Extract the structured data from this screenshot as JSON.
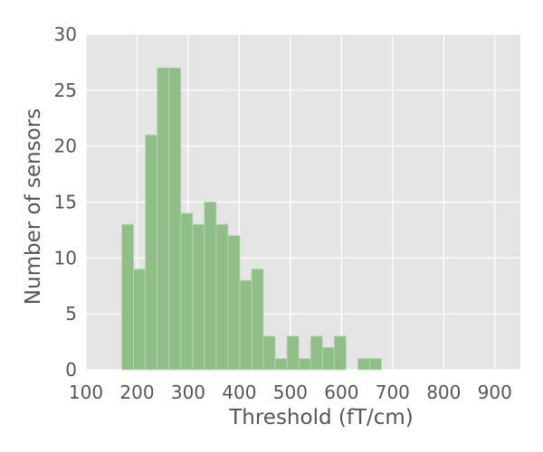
{
  "chart_data": {
    "type": "bar",
    "title": "",
    "xlabel": "Threshold (fT/cm)",
    "ylabel": "Number of sensors",
    "xlim": [
      100,
      950
    ],
    "ylim": [
      0,
      30
    ],
    "xticks": [
      100,
      200,
      300,
      400,
      500,
      600,
      700,
      800,
      900
    ],
    "yticks": [
      0,
      5,
      10,
      15,
      20,
      25,
      30
    ],
    "grid": true,
    "bar_color": "#8fbf87",
    "bar_edge_color": "#b7d6b0",
    "background_color": "#e5e5e5",
    "bins": [
      {
        "x0": 170.0,
        "x1": 193.1,
        "count": 13
      },
      {
        "x0": 193.1,
        "x1": 216.2,
        "count": 9
      },
      {
        "x0": 216.2,
        "x1": 239.3,
        "count": 21
      },
      {
        "x0": 239.3,
        "x1": 262.4,
        "count": 27
      },
      {
        "x0": 262.4,
        "x1": 285.5,
        "count": 27
      },
      {
        "x0": 285.5,
        "x1": 308.6,
        "count": 14
      },
      {
        "x0": 308.6,
        "x1": 331.7,
        "count": 13
      },
      {
        "x0": 331.7,
        "x1": 354.8,
        "count": 15
      },
      {
        "x0": 354.8,
        "x1": 377.9,
        "count": 13
      },
      {
        "x0": 377.9,
        "x1": 401.0,
        "count": 12
      },
      {
        "x0": 401.0,
        "x1": 424.1,
        "count": 8
      },
      {
        "x0": 424.1,
        "x1": 447.2,
        "count": 9
      },
      {
        "x0": 447.2,
        "x1": 470.3,
        "count": 3
      },
      {
        "x0": 470.3,
        "x1": 493.4,
        "count": 1
      },
      {
        "x0": 493.4,
        "x1": 516.5,
        "count": 3
      },
      {
        "x0": 516.5,
        "x1": 539.6,
        "count": 1
      },
      {
        "x0": 539.6,
        "x1": 562.7,
        "count": 3
      },
      {
        "x0": 562.7,
        "x1": 585.8,
        "count": 2
      },
      {
        "x0": 585.8,
        "x1": 608.9,
        "count": 3
      },
      {
        "x0": 632.0,
        "x1": 655.1,
        "count": 1
      },
      {
        "x0": 655.1,
        "x1": 678.2,
        "count": 1
      }
    ]
  }
}
